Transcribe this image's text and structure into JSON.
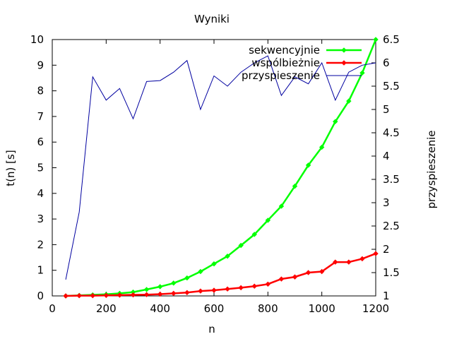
{
  "chart_data": {
    "type": "line",
    "title": "Wyniki",
    "xlabel": "n",
    "ylabel": "t(n) [s]",
    "y2label": "przyspieszenie",
    "xlim": [
      0,
      1200
    ],
    "ylim": [
      0,
      10
    ],
    "y2lim": [
      1,
      6.5
    ],
    "xticks": [
      "0",
      "200",
      "400",
      "600",
      "800",
      "1000",
      "1200"
    ],
    "yticks": [
      "0",
      "1",
      "2",
      "3",
      "4",
      "5",
      "6",
      "7",
      "8",
      "9",
      "10"
    ],
    "y2ticks": [
      "1",
      "1.5",
      "2",
      "2.5",
      "3",
      "3.5",
      "4",
      "4.5",
      "5",
      "5.5",
      "6",
      "6.5"
    ],
    "grid": false,
    "legend_position": "top-right",
    "series": [
      {
        "name": "sekwencyjnie",
        "axis": "y1",
        "color": "#00ff00",
        "marker": "diamond",
        "x": [
          50,
          100,
          150,
          200,
          250,
          300,
          350,
          400,
          450,
          500,
          550,
          600,
          650,
          700,
          750,
          800,
          850,
          900,
          950,
          1000,
          1050,
          1100,
          1150,
          1200
        ],
        "values": [
          0.0,
          0.02,
          0.04,
          0.06,
          0.1,
          0.15,
          0.25,
          0.36,
          0.5,
          0.7,
          0.95,
          1.25,
          1.55,
          1.97,
          2.4,
          2.95,
          3.5,
          4.28,
          5.1,
          5.8,
          6.8,
          7.6,
          8.7,
          10.0
        ]
      },
      {
        "name": "wspolbieznie",
        "display_name": "wspólbieżnie",
        "axis": "y1",
        "color": "#ff0000",
        "marker": "diamond",
        "x": [
          50,
          100,
          150,
          200,
          250,
          300,
          350,
          400,
          450,
          500,
          550,
          600,
          650,
          700,
          750,
          800,
          850,
          900,
          950,
          1000,
          1050,
          1100,
          1150,
          1200
        ],
        "values": [
          0.0,
          0.01,
          0.01,
          0.02,
          0.03,
          0.04,
          0.05,
          0.07,
          0.1,
          0.13,
          0.19,
          0.22,
          0.27,
          0.32,
          0.38,
          0.46,
          0.66,
          0.74,
          0.91,
          0.95,
          1.32,
          1.32,
          1.45,
          1.65
        ]
      },
      {
        "name": "przyspieszenie",
        "axis": "y2",
        "color": "#0000a0",
        "marker": "none",
        "x": [
          50,
          100,
          150,
          200,
          250,
          300,
          350,
          400,
          450,
          500,
          550,
          600,
          650,
          700,
          750,
          800,
          850,
          900,
          950,
          1000,
          1050,
          1100,
          1150,
          1200
        ],
        "values": [
          1.35,
          2.8,
          5.7,
          5.2,
          5.45,
          4.8,
          5.6,
          5.62,
          5.8,
          6.05,
          5.0,
          5.72,
          5.5,
          5.8,
          6.0,
          6.15,
          5.3,
          5.7,
          5.55,
          6.0,
          5.2,
          5.8,
          5.95,
          6.0
        ]
      }
    ]
  }
}
